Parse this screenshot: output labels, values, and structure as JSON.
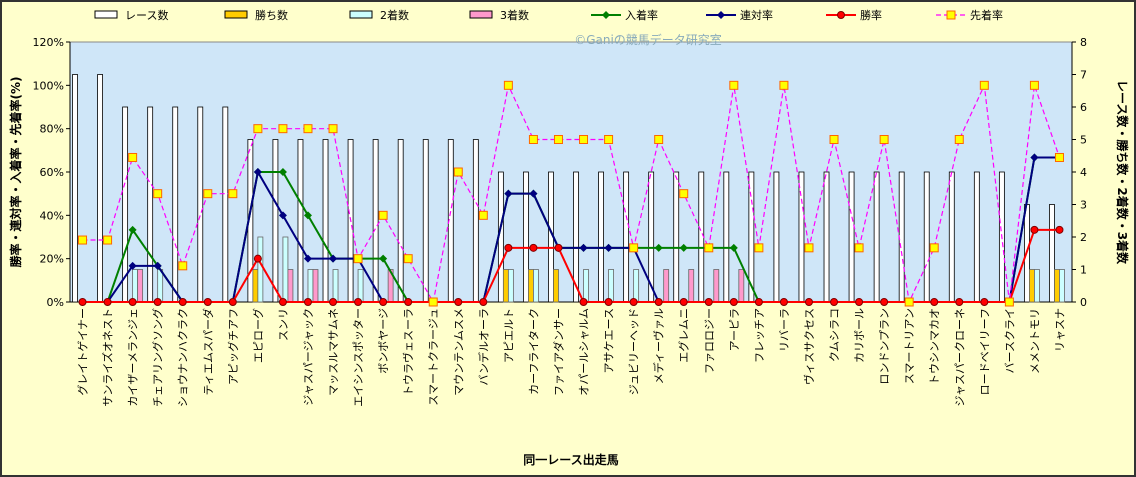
{
  "chart_data": {
    "type": "combo",
    "annotation": "©Ganiの競馬データ研究室",
    "x_label": "同一レース出走馬",
    "y_label": "勝率・連対率・入着率・先着率(%)",
    "y2_label": "レース数・勝ち数・2着数・3着数",
    "categories": [
      "グレイトゲイナー",
      "サンライズオネスト",
      "カイザーメランジェ",
      "チェアリングソング",
      "ショウナンハクラク",
      "ティエムスパーダ",
      "アピッグチアフ",
      "エピローグ",
      "スンリ",
      "ジャスパージャック",
      "マッスルマサムネ",
      "エイシンスポッター",
      "ボンボヤージ",
      "トウラヴェスーラ",
      "スマートクラージュ",
      "マウンテンムスメ",
      "バンデルオーラ",
      "アピエルト",
      "カーフライターク",
      "ファイアダンサー",
      "オパールシャルム",
      "アサケエース",
      "ジュビリーヘッド",
      "メディーヴァル",
      "エグレムニ",
      "ファロロジー",
      "アーピラ",
      "フレッチア",
      "リバーラ",
      "ヴィスサクセス",
      "クムシラコ",
      "カリボール",
      "ロンドンプラン",
      "スマートリアン",
      "トウシンマカオ",
      "ジャスパークローネ",
      "ロードベイリーフ",
      "バースクライ",
      "メメントモリ",
      "リャスナ"
    ],
    "ylim": [
      0,
      120
    ],
    "yticks": [
      {
        "value": 0,
        "label": "0%"
      },
      {
        "value": 20,
        "label": "20%"
      },
      {
        "value": 40,
        "label": "40%"
      },
      {
        "value": 60,
        "label": "60%"
      },
      {
        "value": 80,
        "label": "80%"
      },
      {
        "value": 100,
        "label": "100%"
      },
      {
        "value": 120,
        "label": "120%"
      }
    ],
    "y2lim": [
      0,
      8
    ],
    "y2ticks": [
      0,
      1,
      2,
      3,
      4,
      5,
      6,
      7,
      8
    ],
    "series": [
      {
        "name": "レース数",
        "kind": "bar",
        "axis": "y2",
        "color": "#ffffff",
        "values": [
          7,
          7,
          6,
          6,
          6,
          6,
          6,
          5,
          5,
          5,
          5,
          5,
          5,
          5,
          5,
          5,
          5,
          4,
          4,
          4,
          4,
          4,
          4,
          4,
          4,
          4,
          4,
          4,
          4,
          4,
          4,
          4,
          4,
          4,
          4,
          4,
          4,
          4,
          3,
          3
        ]
      },
      {
        "name": "勝ち数",
        "kind": "bar",
        "axis": "y2",
        "color": "#ffcc00",
        "values": [
          0,
          0,
          0,
          0,
          0,
          0,
          0,
          1,
          0,
          0,
          0,
          0,
          0,
          0,
          0,
          0,
          0,
          1,
          1,
          1,
          0,
          0,
          0,
          0,
          0,
          0,
          0,
          0,
          0,
          0,
          0,
          0,
          0,
          0,
          0,
          0,
          0,
          0,
          1,
          1
        ]
      },
      {
        "name": "2着数",
        "kind": "bar",
        "axis": "y2",
        "color": "#ccffff",
        "values": [
          0,
          0,
          1,
          1,
          0,
          0,
          0,
          2,
          2,
          1,
          1,
          1,
          0,
          0,
          0,
          0,
          0,
          1,
          1,
          0,
          1,
          1,
          1,
          0,
          0,
          0,
          0,
          0,
          0,
          0,
          0,
          0,
          0,
          0,
          0,
          0,
          0,
          0,
          1,
          1
        ]
      },
      {
        "name": "3着数",
        "kind": "bar",
        "axis": "y2",
        "color": "#ff99cc",
        "values": [
          0,
          0,
          1,
          0,
          0,
          0,
          0,
          0,
          1,
          1,
          0,
          0,
          1,
          0,
          0,
          0,
          0,
          0,
          0,
          0,
          0,
          0,
          0,
          1,
          1,
          1,
          1,
          0,
          0,
          0,
          0,
          0,
          0,
          0,
          0,
          0,
          0,
          0,
          0,
          0
        ]
      },
      {
        "name": "入着率",
        "kind": "line",
        "color": "#008000",
        "marker": "diamond",
        "values": [
          0,
          0,
          33.3,
          16.7,
          0,
          0,
          0,
          60,
          60,
          40,
          20,
          20,
          20,
          0,
          0,
          0,
          0,
          50,
          50,
          25,
          25,
          25,
          25,
          25,
          25,
          25,
          25,
          0,
          0,
          0,
          0,
          0,
          0,
          0,
          0,
          0,
          0,
          0,
          66.7,
          66.7
        ]
      },
      {
        "name": "連対率",
        "kind": "line",
        "color": "#000080",
        "marker": "diamond",
        "values": [
          0,
          0,
          16.7,
          16.7,
          0,
          0,
          0,
          60,
          40,
          20,
          20,
          20,
          0,
          0,
          0,
          0,
          0,
          50,
          50,
          25,
          25,
          25,
          25,
          0,
          0,
          0,
          0,
          0,
          0,
          0,
          0,
          0,
          0,
          0,
          0,
          0,
          0,
          0,
          66.7,
          66.7
        ]
      },
      {
        "name": "勝率",
        "kind": "line",
        "color": "#ff0000",
        "marker": "circle",
        "values": [
          0,
          0,
          0,
          0,
          0,
          0,
          0,
          20,
          0,
          0,
          0,
          0,
          0,
          0,
          0,
          0,
          0,
          25,
          25,
          25,
          0,
          0,
          0,
          0,
          0,
          0,
          0,
          0,
          0,
          0,
          0,
          0,
          0,
          0,
          0,
          0,
          0,
          0,
          33.3,
          33.3
        ]
      },
      {
        "name": "先着率",
        "kind": "line",
        "color": "#ff00ff",
        "marker": "square",
        "dash": true,
        "values": [
          28.6,
          28.6,
          66.7,
          50,
          16.7,
          50,
          50,
          80,
          80,
          80,
          80,
          20,
          40,
          20,
          0,
          60,
          40,
          100,
          75,
          75,
          75,
          75,
          25,
          75,
          50,
          25,
          100,
          25,
          100,
          25,
          75,
          25,
          75,
          0,
          25,
          75,
          100,
          0,
          100,
          66.7
        ]
      }
    ]
  }
}
